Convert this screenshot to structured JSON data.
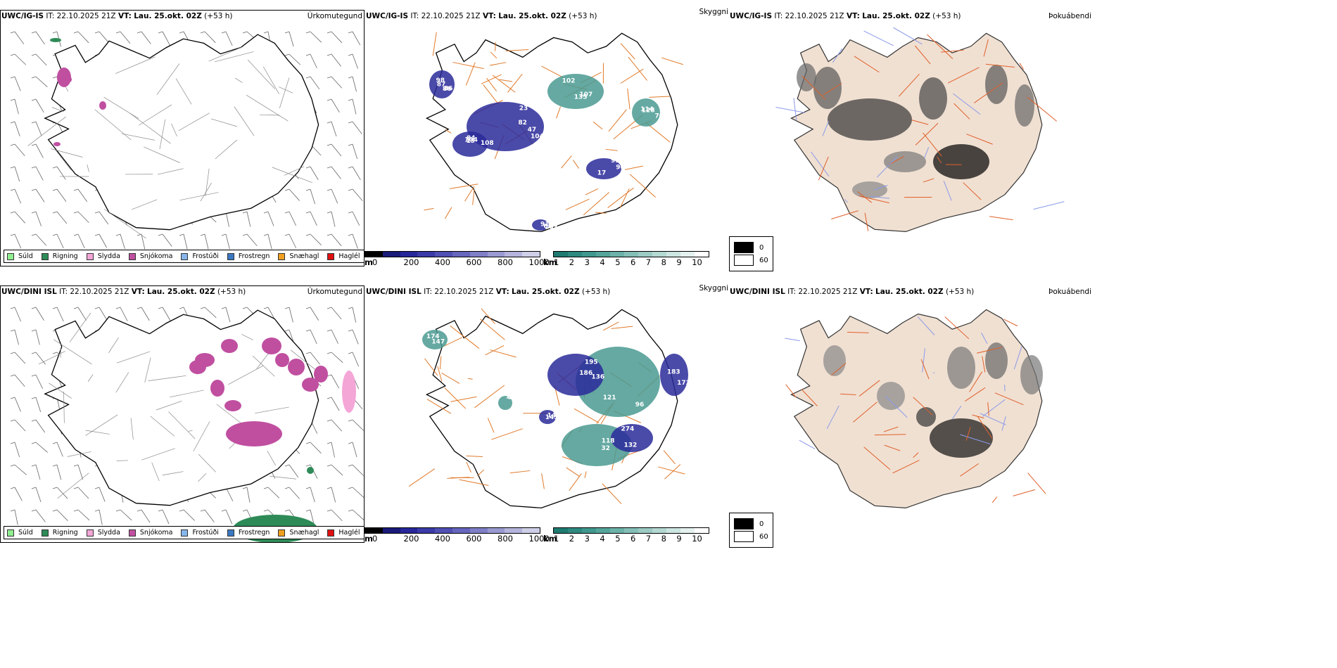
{
  "rows": [
    {
      "id": "top",
      "precip_panel": {
        "model": "UWC/IG-IS",
        "it_label": "IT:",
        "it_value": "22.10.2025 21Z",
        "vt_label": "VT:",
        "vt_value": "Lau. 25.okt. 02Z",
        "lead": "(+53 h)",
        "product": "Úrkomutegund"
      },
      "cloud_panel": {
        "model": "UWC/IG-IS",
        "it_label": "IT:",
        "it_value": "22.10.2025 21Z",
        "vt_label": "VT:",
        "vt_value": "Lau. 25.okt. 02Z",
        "lead": "(+53 h)",
        "product": "Skyggni"
      },
      "fog_panel": {
        "model": "UWC/IG-IS",
        "it_label": "IT:",
        "it_value": "22.10.2025 21Z",
        "vt_label": "VT:",
        "vt_value": "Lau. 25.okt. 02Z",
        "lead": "(+53 h)",
        "product": "Þokuábendi"
      },
      "cloud_labels": [
        "47",
        "19",
        "87",
        "102",
        "96",
        "103",
        "70",
        "104",
        "104",
        "86",
        "107",
        "99",
        "91",
        "114",
        "82",
        "108",
        "98",
        "135",
        "17",
        "65",
        "128",
        "23",
        "84",
        "86"
      ]
    },
    {
      "id": "bottom",
      "precip_panel": {
        "model": "UWC/DINI ISL",
        "it_label": "IT:",
        "it_value": "22.10.2025 21Z",
        "vt_label": "VT:",
        "vt_value": "Lau. 25.okt. 02Z",
        "lead": "(+53 h)",
        "product": "Úrkomutegund"
      },
      "cloud_panel": {
        "model": "UWC/DINI ISL",
        "it_label": "IT:",
        "it_value": "22.10.2025 21Z",
        "vt_label": "VT:",
        "vt_value": "Lau. 25.okt. 02Z",
        "lead": "(+53 h)",
        "product": "Skyggni"
      },
      "fog_panel": {
        "model": "UWC/DINI ISL",
        "it_label": "IT:",
        "it_value": "22.10.2025 21Z",
        "vt_label": "VT:",
        "vt_value": "Lau. 25.okt. 02Z",
        "lead": "(+53 h)",
        "product": "Þokuábendi"
      },
      "cloud_labels": [
        "136",
        "195",
        "32",
        "274",
        "183",
        "149",
        "159",
        "147",
        "121",
        "186",
        "118",
        "132",
        "173",
        "145",
        "124",
        "174",
        "96"
      ]
    }
  ],
  "precip_legend": [
    {
      "label": "Súld",
      "color": "#90ee90"
    },
    {
      "label": "Rigning",
      "color": "#2e8b57"
    },
    {
      "label": "Slydda",
      "color": "#f4a6d7"
    },
    {
      "label": "Snjókoma",
      "color": "#c04fa0"
    },
    {
      "label": "Frostúði",
      "color": "#87b6ea"
    },
    {
      "label": "Frostregn",
      "color": "#3a78c2"
    },
    {
      "label": "Snæhagl",
      "color": "#f0a020"
    },
    {
      "label": "Haglél",
      "color": "#e01010"
    }
  ],
  "ceiling_bar": {
    "unit": "m",
    "ticks": [
      "0",
      "200",
      "400",
      "600",
      "800",
      "1000"
    ],
    "colors": [
      "#000000",
      "#1a1a7a",
      "#27279a",
      "#3a3aa8",
      "#4f4fb4",
      "#6666be",
      "#7f7fc8",
      "#9a9ad2",
      "#b4b4dc",
      "#cfcfe8"
    ]
  },
  "visibility_bar": {
    "unit": "km",
    "ticks": [
      "1",
      "2",
      "3",
      "4",
      "5",
      "6",
      "7",
      "8",
      "9",
      "10"
    ],
    "colors": [
      "#1f7a70",
      "#2f8a80",
      "#40988e",
      "#55a59b",
      "#6cb2a9",
      "#84bfb7",
      "#9ccbc4",
      "#b4d8d2",
      "#cce5e0",
      "#e4f1ef",
      "#ffffff"
    ]
  },
  "fog_legend": [
    {
      "label": "0",
      "color": "#000000"
    },
    {
      "label": "60",
      "color": "#ffffff"
    }
  ],
  "colors": {
    "land_fog": "#f0e0d2",
    "roads": "#e07a2a",
    "coast": "#000000",
    "wind_barb": "#666666",
    "ceiling_blue": "#2a2a9a",
    "visibility_teal": "#4a9a92",
    "snow": "#c04fa0",
    "rain": "#2e8b57",
    "sleet": "#f4a6d7"
  }
}
